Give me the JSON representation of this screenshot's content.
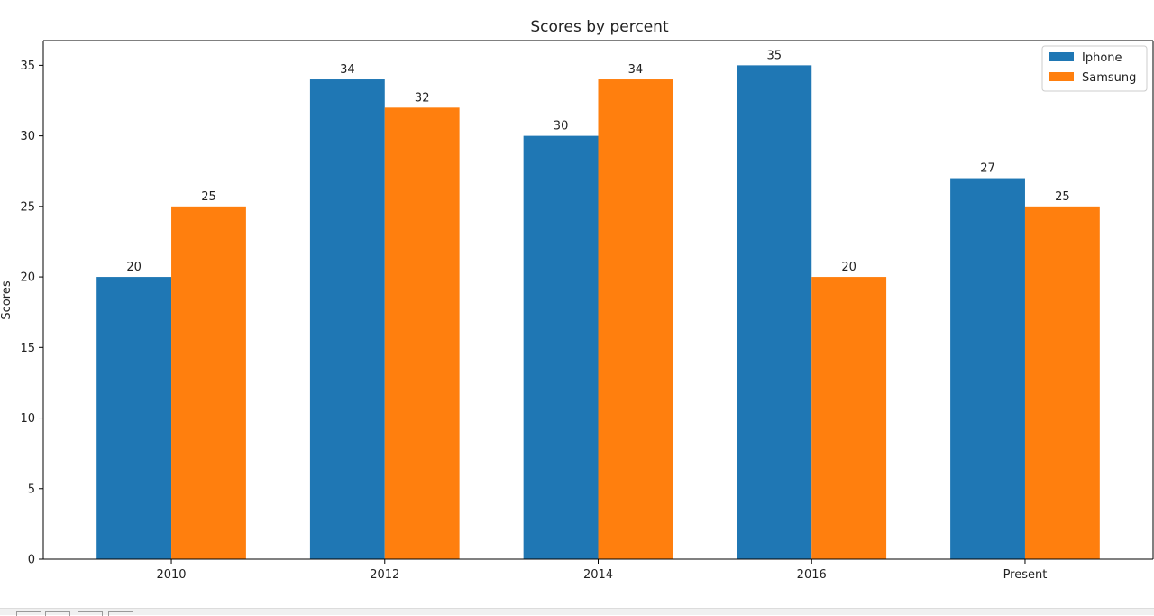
{
  "chart_data": {
    "type": "bar",
    "title": "Scores by percent",
    "xlabel": "",
    "ylabel": "Scores",
    "categories": [
      "2010",
      "2012",
      "2014",
      "2016",
      "Present"
    ],
    "series": [
      {
        "name": "Iphone",
        "values": [
          20,
          34,
          30,
          35,
          27
        ],
        "color": "#1f77b4"
      },
      {
        "name": "Samsung",
        "values": [
          25,
          32,
          34,
          20,
          25
        ],
        "color": "#ff7f0e"
      }
    ],
    "yticks": [
      0,
      5,
      10,
      15,
      20,
      25,
      30,
      35
    ],
    "ylim": [
      0,
      36.75
    ],
    "grid": false,
    "legend_position": "top-right",
    "data_labels": true
  }
}
